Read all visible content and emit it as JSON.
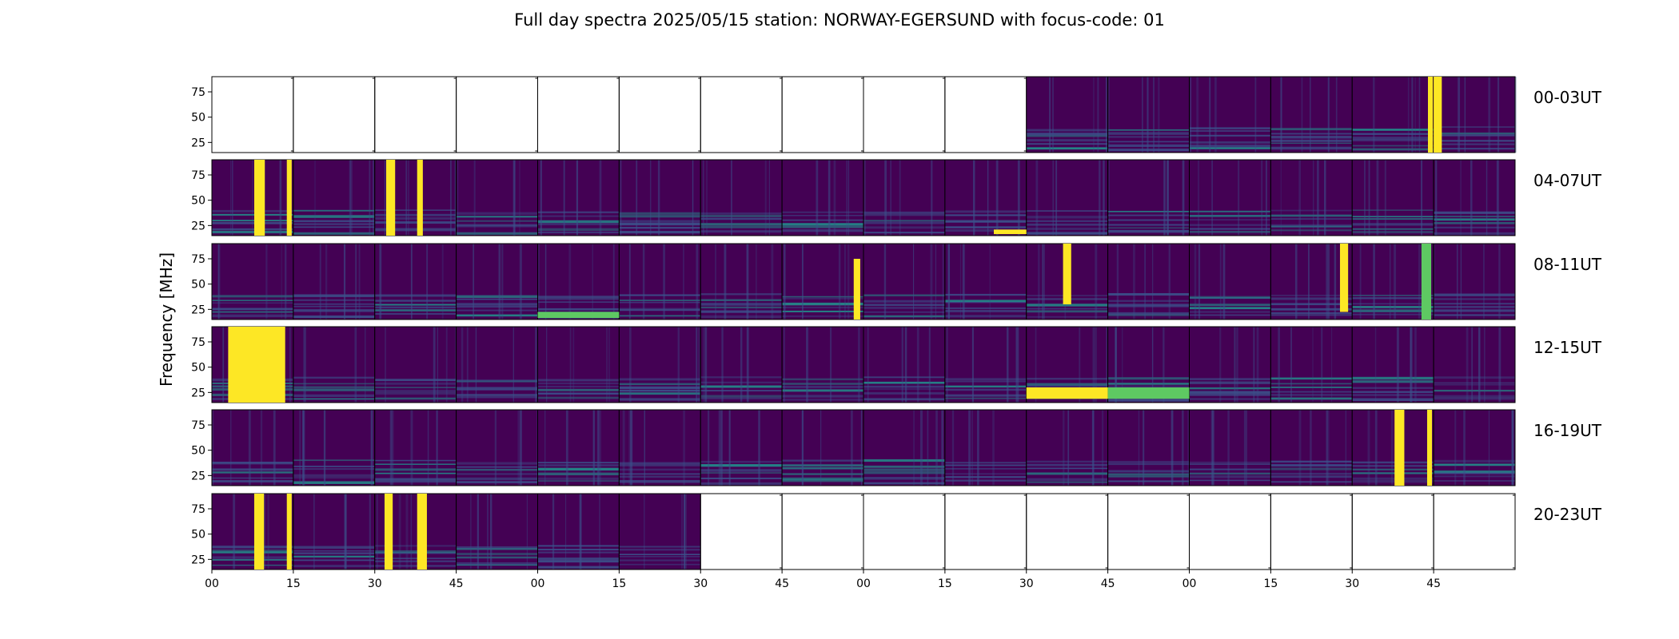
{
  "chart_data": {
    "type": "heatmap",
    "title": "Full day spectra 2025/05/15 station: NORWAY-EGERSUND with focus-code: 01",
    "ylabel": "Frequency [MHz]",
    "xlabel": "",
    "yticks": [
      25,
      50,
      75
    ],
    "ylim": [
      15,
      90
    ],
    "xticks": [
      "00",
      "15",
      "30",
      "45",
      "00",
      "15",
      "30",
      "45",
      "00",
      "15",
      "30",
      "45",
      "00",
      "15",
      "30",
      "45"
    ],
    "rows": [
      "00-03UT",
      "04-07UT",
      "08-11UT",
      "12-15UT",
      "16-19UT",
      "20-23UT"
    ],
    "colormap": [
      "#440154",
      "#3b528b",
      "#21918c",
      "#5ec962",
      "#fde725"
    ],
    "availability": [
      [
        0,
        0,
        0,
        0,
        0,
        0,
        0,
        0,
        0,
        0,
        1,
        1,
        1,
        1,
        1,
        1
      ],
      [
        1,
        1,
        1,
        1,
        1,
        1,
        1,
        1,
        1,
        1,
        1,
        1,
        1,
        1,
        1,
        1
      ],
      [
        1,
        1,
        1,
        1,
        1,
        1,
        1,
        1,
        1,
        1,
        1,
        1,
        1,
        1,
        1,
        1
      ],
      [
        1,
        1,
        1,
        1,
        1,
        1,
        1,
        1,
        1,
        1,
        1,
        1,
        1,
        1,
        1,
        1
      ],
      [
        1,
        1,
        1,
        1,
        1,
        1,
        1,
        1,
        1,
        1,
        1,
        1,
        1,
        1,
        1,
        1
      ],
      [
        1,
        1,
        1,
        1,
        1,
        1,
        0,
        0,
        0,
        0,
        0,
        0,
        0,
        0,
        0,
        0
      ]
    ]
  }
}
